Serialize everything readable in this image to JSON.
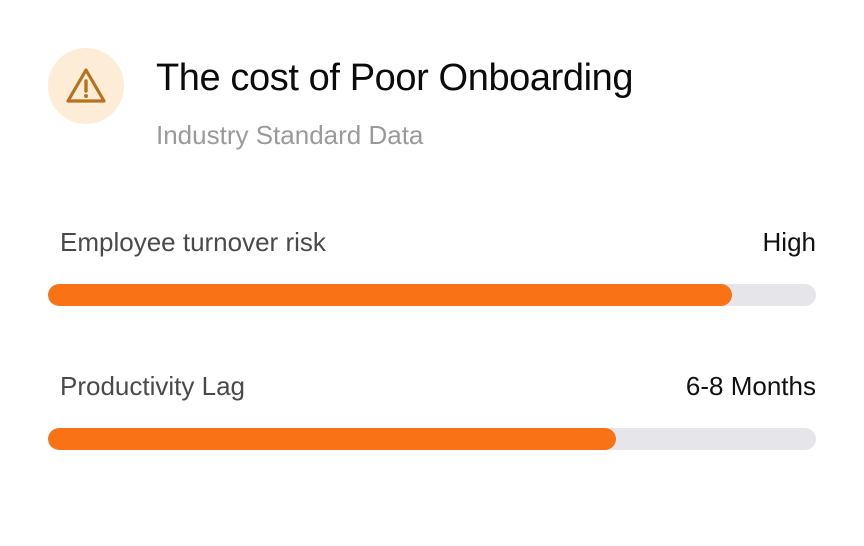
{
  "header": {
    "icon": "warning-triangle-icon",
    "title": "The cost of Poor Onboarding",
    "subtitle": "Industry Standard Data"
  },
  "colors": {
    "accent": "#f97316",
    "icon_bg": "#fdecd6",
    "icon_stroke": "#b5731f",
    "track": "#e6e6ea"
  },
  "metrics": [
    {
      "label": "Employee turnover risk",
      "value": "High",
      "progress_percent": 89
    },
    {
      "label": "Productivity Lag",
      "value": "6-8 Months",
      "progress_percent": 74
    }
  ]
}
